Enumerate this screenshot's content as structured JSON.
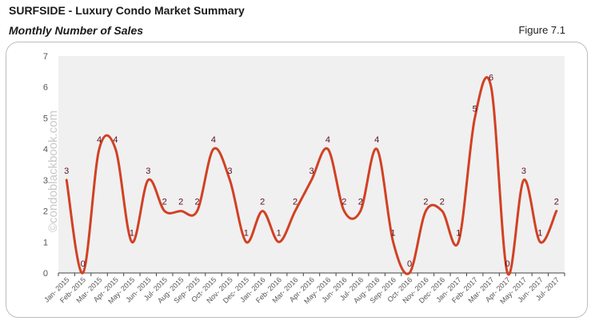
{
  "header": {
    "title": "SURFSIDE - Luxury Condo Market Summary",
    "subtitle": "Monthly Number of Sales",
    "figure": "Figure 7.1"
  },
  "watermark": "©condoblackbook.com",
  "colors": {
    "line": "#d14124",
    "plot_bg": "#f0f0f0",
    "label": "#5a0f1e"
  },
  "chart_data": {
    "type": "line",
    "title": "Monthly Number of Sales",
    "xlabel": "",
    "ylabel": "",
    "ylim": [
      0,
      7
    ],
    "yticks": [
      0,
      1,
      2,
      3,
      4,
      5,
      6,
      7
    ],
    "grid": false,
    "smoothed": true,
    "legend": "none",
    "categories": [
      "Jan- 2015",
      "Feb- 2015",
      "Mar- 2015",
      "Apr- 2015",
      "May- 2015",
      "Jun- 2015",
      "Jul- 2015",
      "Aug- 2015",
      "Sep- 2015",
      "Oct- 2015",
      "Nov- 2015",
      "Dec- 2015",
      "Jan- 2016",
      "Feb- 2016",
      "Mar- 2016",
      "Apr- 2016",
      "May- 2016",
      "Jun- 2016",
      "Jul- 2016",
      "Aug- 2016",
      "Sep- 2016",
      "Oct- 2016",
      "Nov- 2016",
      "Dec- 2016",
      "Jan- 2017",
      "Feb- 2017",
      "Mar- 2017",
      "Apr- 2017",
      "May- 2017",
      "Jun- 2017",
      "Jul- 2017"
    ],
    "series": [
      {
        "name": "Number of Sales",
        "values": [
          3,
          0,
          4,
          4,
          1,
          3,
          2,
          2,
          2,
          4,
          3,
          1,
          2,
          1,
          2,
          3,
          4,
          2,
          2,
          4,
          1,
          0,
          2,
          2,
          1,
          5,
          6,
          0,
          3,
          1,
          2
        ]
      }
    ]
  }
}
